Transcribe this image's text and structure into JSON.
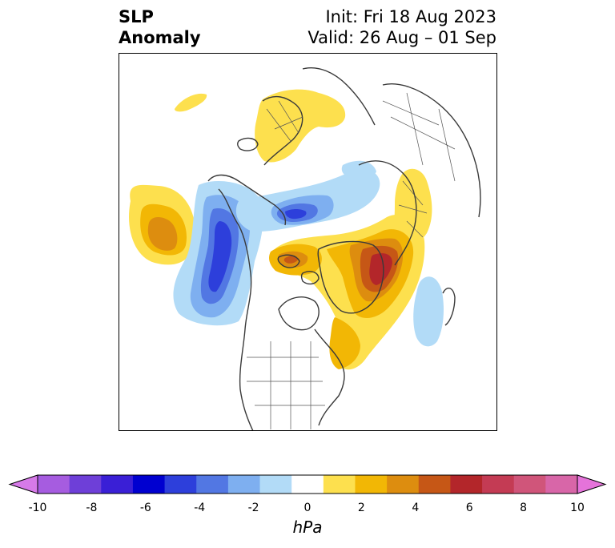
{
  "title": {
    "variable_line1": "SLP",
    "variable_line2": "Anomaly",
    "init": "Init: Fri 18 Aug 2023",
    "valid": "Valid: 26 Aug – 01 Sep"
  },
  "colorbar": {
    "units": "hPa",
    "tick_labels": [
      "-10",
      "-8",
      "-6",
      "-4",
      "-2",
      "0",
      "2",
      "4",
      "6",
      "8",
      "10"
    ],
    "colors": [
      "#d67ae8",
      "#a65ce0",
      "#6e3fd8",
      "#3a1fd6",
      "#0000d0",
      "#2d3fdb",
      "#5277e3",
      "#7eaff0",
      "#b2dbf7",
      "#ffffff",
      "#fde04e",
      "#f2b705",
      "#dd8d0f",
      "#c65716",
      "#b3262a",
      "#c43b54",
      "#d0557a",
      "#d866a8",
      "#e573da"
    ],
    "extend": "both"
  },
  "map": {
    "projection": "polar stereographic",
    "region": "North Pole / North Atlantic / North America",
    "anomaly_features": [
      {
        "name": "north-pacific-high",
        "peak_hpa": 4,
        "sign": "positive"
      },
      {
        "name": "alaska-low",
        "peak_hpa": -6,
        "sign": "negative"
      },
      {
        "name": "beaufort-low",
        "peak_hpa": -6,
        "sign": "negative"
      },
      {
        "name": "greenland-high",
        "peak_hpa": 6,
        "sign": "positive"
      },
      {
        "name": "canadian-archipelago-high",
        "peak_hpa": 6,
        "sign": "positive"
      },
      {
        "name": "scandinavia-high",
        "peak_hpa": 2,
        "sign": "positive"
      },
      {
        "name": "siberia-high",
        "peak_hpa": 2,
        "sign": "positive"
      },
      {
        "name": "mid-atlantic-low",
        "peak_hpa": -2,
        "sign": "negative"
      }
    ]
  }
}
